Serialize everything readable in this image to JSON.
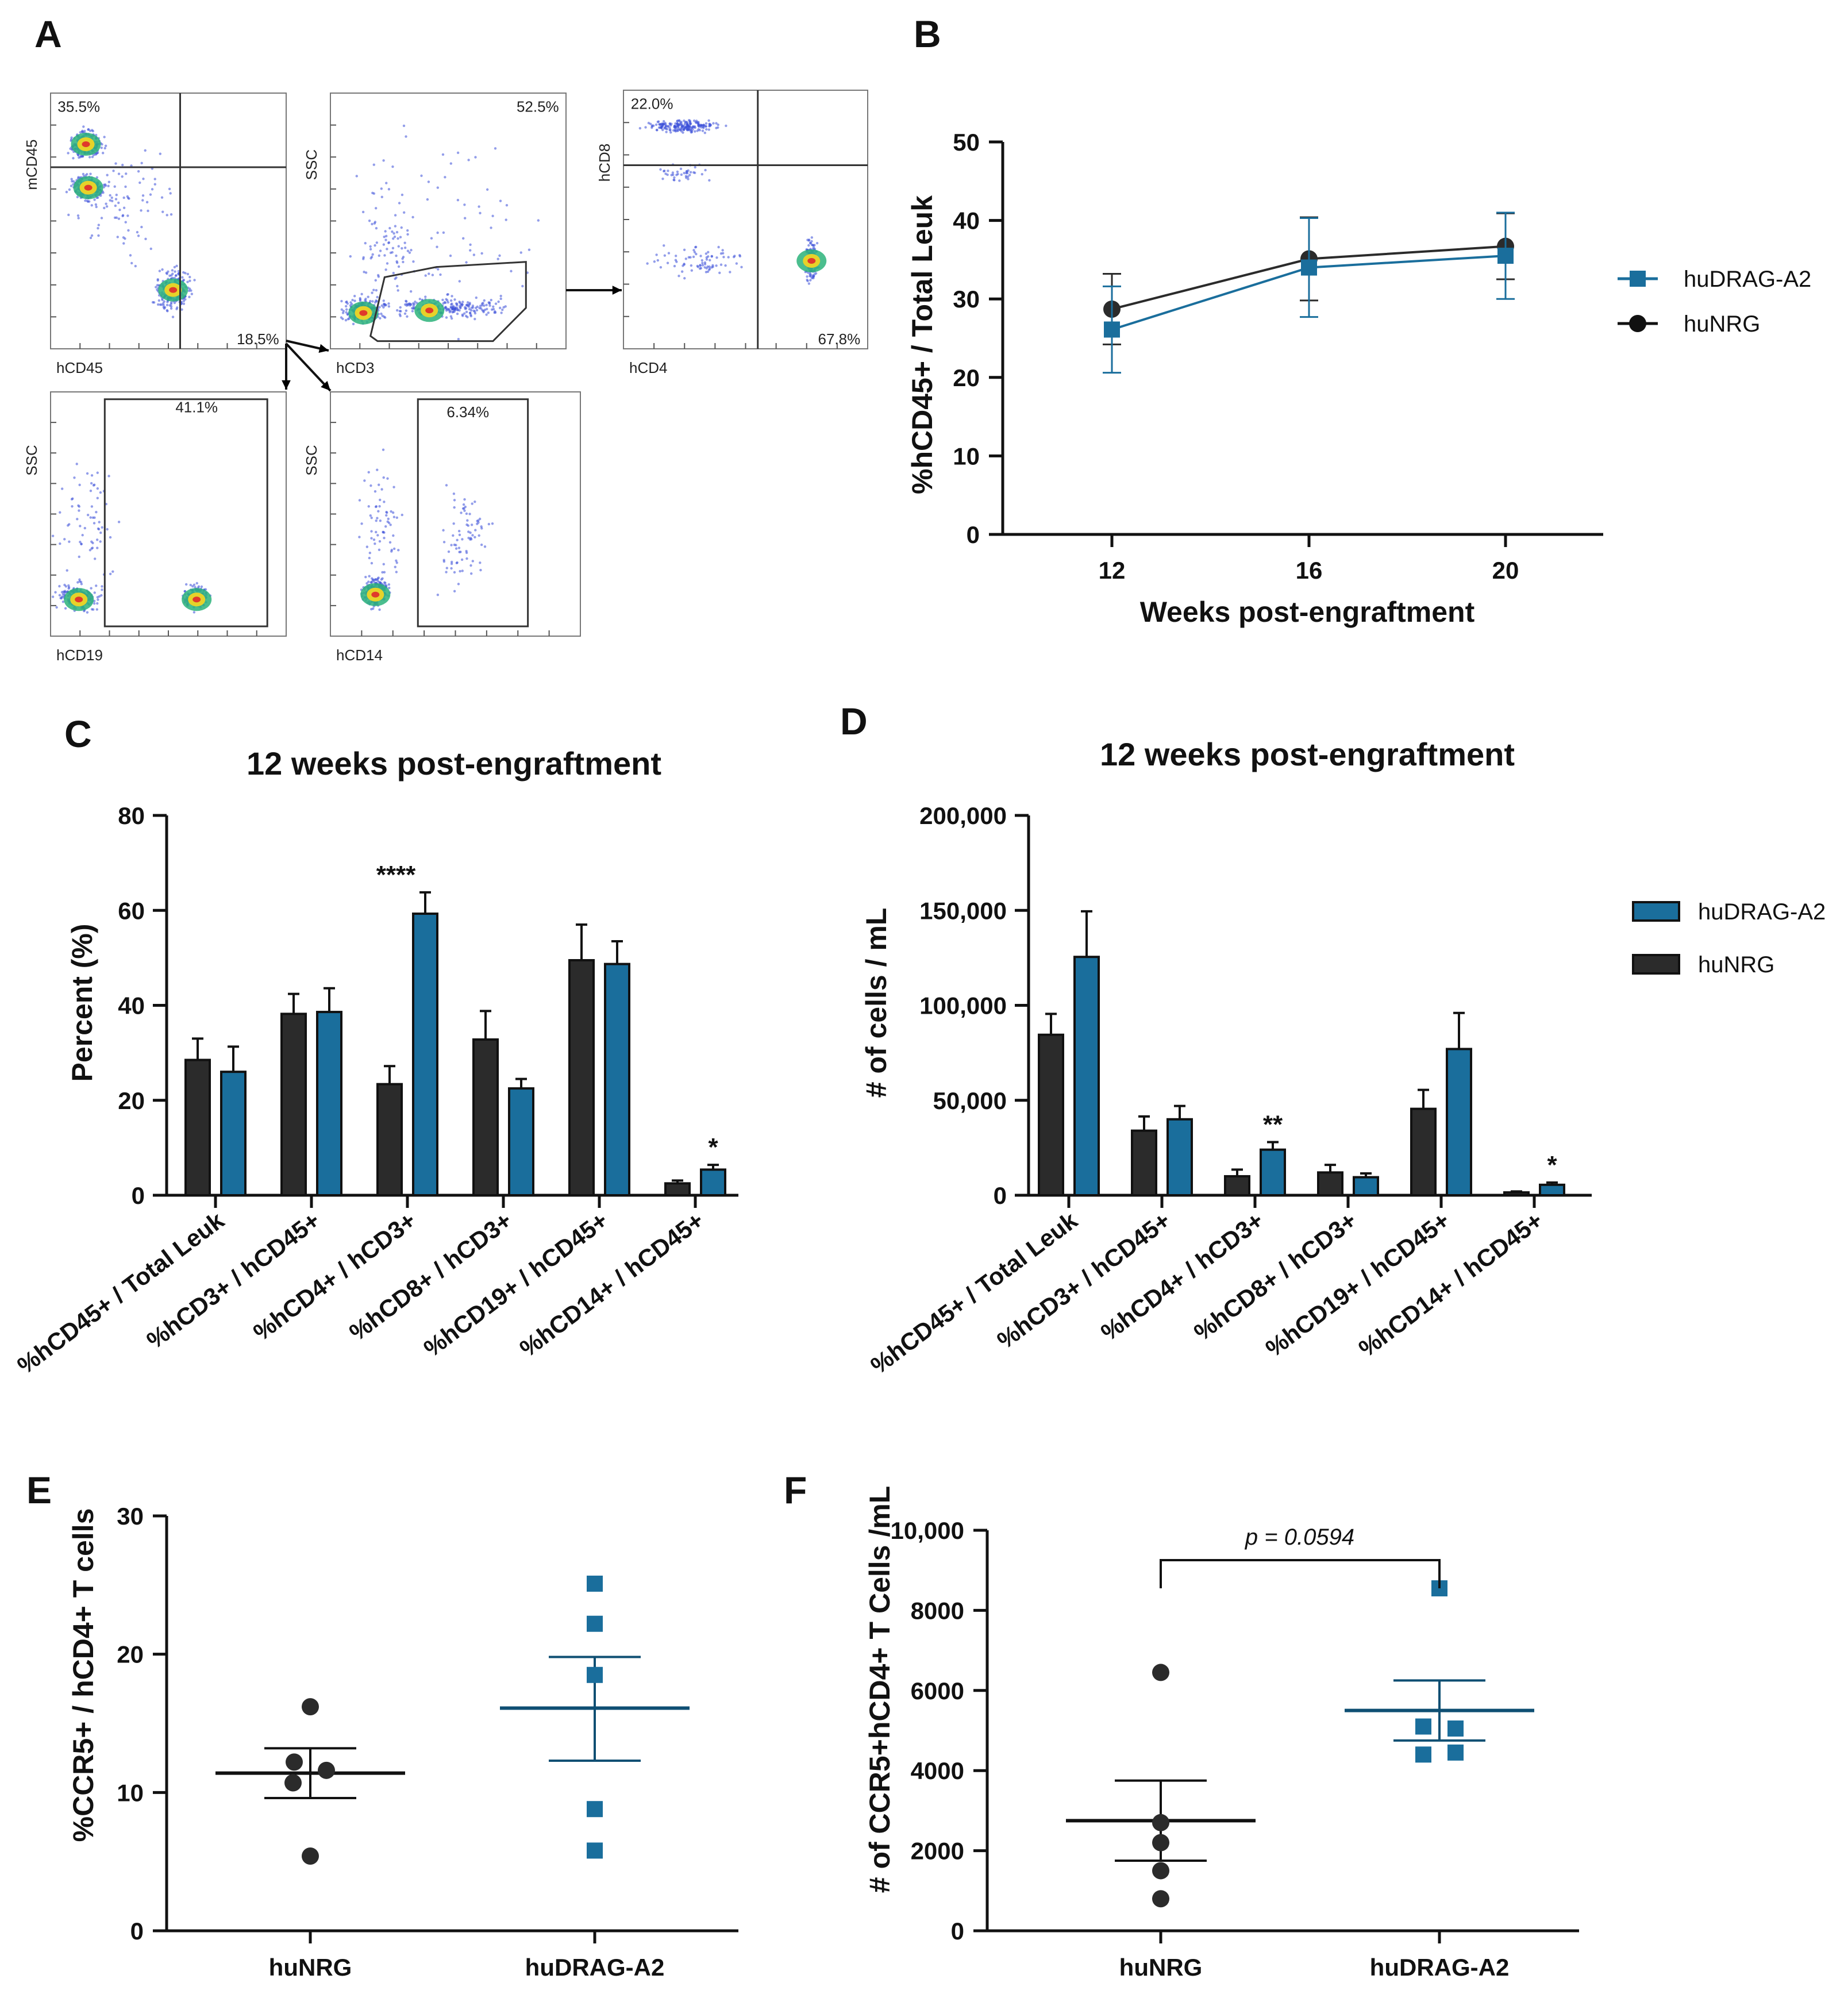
{
  "colors": {
    "drag": "#1a6e9c",
    "nrg": "#2b2b2b",
    "axis": "#111111",
    "density": "#3a4fd8"
  },
  "panel_letters": [
    "A",
    "B",
    "C",
    "D",
    "E",
    "F"
  ],
  "flow": {
    "plots": [
      {
        "id": "p1",
        "xlabel": "hCD45",
        "ylabel": "mCD45",
        "labels": [
          "35.5%",
          "18.5%"
        ]
      },
      {
        "id": "p2",
        "xlabel": "hCD3",
        "ylabel": "SSC",
        "labels": [
          "52.5%"
        ]
      },
      {
        "id": "p3",
        "xlabel": "hCD4",
        "ylabel": "hCD8",
        "labels": [
          "22.0%",
          "67.8%"
        ]
      },
      {
        "id": "p4",
        "xlabel": "hCD19",
        "ylabel": "SSC",
        "labels": [
          "41.1%"
        ]
      },
      {
        "id": "p5",
        "xlabel": "hCD14",
        "ylabel": "SSC",
        "labels": [
          "6.34%"
        ]
      }
    ]
  },
  "chart_data": [
    {
      "panel": "B",
      "type": "line",
      "title": "",
      "xlabel": "Weeks post-engraftment",
      "ylabel": "%hCD45+ / Total Leuk",
      "x": [
        12,
        16,
        20
      ],
      "xticks": [
        "12",
        "16",
        "20"
      ],
      "ylim": [
        0,
        50
      ],
      "yticks": [
        "0",
        "10",
        "20",
        "30",
        "40",
        "50"
      ],
      "legend_position": "right",
      "series": [
        {
          "name": "huDRAG-A2",
          "values": [
            26.1,
            34.0,
            35.5
          ],
          "err": [
            5.5,
            6.3,
            5.5
          ],
          "marker": "square"
        },
        {
          "name": "huNRG",
          "values": [
            28.7,
            35.1,
            36.7
          ],
          "err": [
            4.5,
            5.3,
            4.2
          ],
          "marker": "circle"
        }
      ]
    },
    {
      "panel": "C",
      "type": "bar",
      "title": "12 weeks post-engraftment",
      "xlabel": "",
      "ylabel": "Percent (%)",
      "categories": [
        "%hCD45+ / Total  Leuk",
        "%hCD3+ / hCD45+",
        "%hCD4+ / hCD3+",
        "%hCD8+ / hCD3+",
        "%hCD19+ / hCD45+",
        "%hCD14+ / hCD45+"
      ],
      "ylim": [
        0,
        80
      ],
      "yticks": [
        "0",
        "20",
        "40",
        "60",
        "80"
      ],
      "series": [
        {
          "name": "huNRG",
          "values": [
            28.5,
            38.2,
            23.4,
            32.8,
            49.5,
            2.5
          ],
          "err": [
            4.5,
            4.2,
            3.8,
            6.0,
            7.5,
            0.6
          ]
        },
        {
          "name": "huDRAG-A2",
          "values": [
            26.0,
            38.6,
            59.3,
            22.5,
            48.7,
            5.4
          ],
          "err": [
            5.3,
            5.0,
            4.5,
            2.0,
            4.8,
            1.0
          ]
        }
      ],
      "significance": [
        "",
        "",
        "****",
        "",
        "",
        "*"
      ]
    },
    {
      "panel": "D",
      "type": "bar",
      "title": "12 weeks post-engraftment",
      "xlabel": "",
      "ylabel": "# of cells / mL",
      "categories": [
        "%hCD45+ / Total  Leuk",
        "%hCD3+ / hCD45+",
        "%hCD4+ / hCD3+",
        "%hCD8+ / hCD3+",
        "%hCD19+ / hCD45+",
        "%hCD14+ / hCD45+"
      ],
      "ylim": [
        0,
        200000
      ],
      "yticks": [
        "0",
        "50,000",
        "100,000",
        "150,000",
        "200,000"
      ],
      "legend_position": "right",
      "series": [
        {
          "name": "huNRG",
          "values": [
            84500,
            34000,
            10000,
            12000,
            45500,
            1500
          ],
          "err": [
            11000,
            7500,
            3500,
            4000,
            10000,
            500
          ]
        },
        {
          "name": "huDRAG-A2",
          "values": [
            125500,
            40000,
            24000,
            9500,
            77000,
            5500
          ],
          "err": [
            24000,
            7000,
            4000,
            2000,
            19000,
            1200
          ]
        }
      ],
      "legend": [
        "huDRAG-A2",
        "huNRG"
      ],
      "significance": [
        "",
        "",
        "**",
        "",
        "",
        "*"
      ]
    },
    {
      "panel": "E",
      "type": "scatter",
      "title": "",
      "xlabel": "",
      "ylabel": "%CCR5+ / hCD4+ T cells",
      "categories": [
        "huNRG",
        "huDRAG-A2"
      ],
      "ylim": [
        0,
        30
      ],
      "yticks": [
        "0",
        "10",
        "20",
        "30"
      ],
      "series": [
        {
          "name": "huNRG",
          "points": [
            16.2,
            12.2,
            11.6,
            10.7,
            5.4
          ],
          "mean": 11.4,
          "sem_low": 9.6,
          "sem_high": 13.2
        },
        {
          "name": "huDRAG-A2",
          "points": [
            25.1,
            22.2,
            18.5,
            8.8,
            5.8
          ],
          "mean": 16.1,
          "sem_low": 12.3,
          "sem_high": 19.8
        }
      ]
    },
    {
      "panel": "F",
      "type": "scatter",
      "title": "",
      "xlabel": "",
      "ylabel": "# of CCR5+hCD4+ T Cells /mL",
      "categories": [
        "huNRG",
        "huDRAG-A2"
      ],
      "ylim": [
        0,
        10000
      ],
      "yticks": [
        "0",
        "2000",
        "4000",
        "6000",
        "8000",
        "10,000"
      ],
      "annotation": "p = 0.0594",
      "series": [
        {
          "name": "huNRG",
          "points": [
            6450,
            2700,
            2200,
            1500,
            800
          ],
          "mean": 2750,
          "sem_low": 1750,
          "sem_high": 3750
        },
        {
          "name": "huDRAG-A2",
          "points": [
            8550,
            5100,
            5050,
            4450,
            4400
          ],
          "mean": 5500,
          "sem_low": 4750,
          "sem_high": 6250
        }
      ]
    }
  ]
}
